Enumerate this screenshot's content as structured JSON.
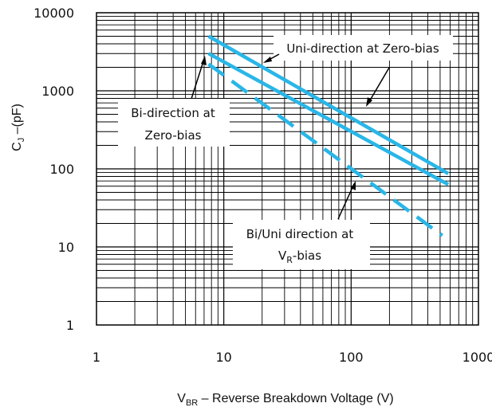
{
  "chart_data": {
    "type": "line",
    "title": "",
    "x_scale": "log",
    "y_scale": "log",
    "xlim": [
      1,
      1000
    ],
    "ylim": [
      1,
      10000
    ],
    "grid": true,
    "xlabel": {
      "main": "V",
      "sub": "BR",
      "rest": " – Reverse Breakdown Voltage (V)"
    },
    "ylabel": {
      "main": "C",
      "sub": "J",
      "rest": " –(pF)"
    },
    "x_ticks": [
      {
        "value": 1,
        "label": "1"
      },
      {
        "value": 10,
        "label": "10"
      },
      {
        "value": 100,
        "label": "100"
      },
      {
        "value": 1000,
        "label": "1000"
      }
    ],
    "y_ticks": [
      {
        "value": 1,
        "label": "1"
      },
      {
        "value": 10,
        "label": "10"
      },
      {
        "value": 100,
        "label": "100"
      },
      {
        "value": 1000,
        "label": "1000"
      },
      {
        "value": 10000,
        "label": "10000"
      }
    ],
    "series_color": "#29b6e8",
    "series": [
      {
        "style": "solid",
        "x": [
          7.6,
          580
        ],
        "y": [
          5000,
          87
        ]
      },
      {
        "style": "solid",
        "x": [
          7.6,
          580
        ],
        "y": [
          3000,
          63
        ]
      },
      {
        "style": "dashed",
        "x": [
          7.6,
          520
        ],
        "y": [
          2200,
          14
        ]
      }
    ],
    "annotations": [
      {
        "lines": [
          "Uni-direction at Zero-bias"
        ]
      },
      {
        "lines": [
          "Bi-direction at",
          "Zero-bias"
        ]
      },
      {
        "lines": [
          "Bi/Uni direction at",
          "V_R-bias"
        ],
        "second_line": {
          "main": "V",
          "sub": "R",
          "rest": "-bias"
        }
      }
    ]
  }
}
